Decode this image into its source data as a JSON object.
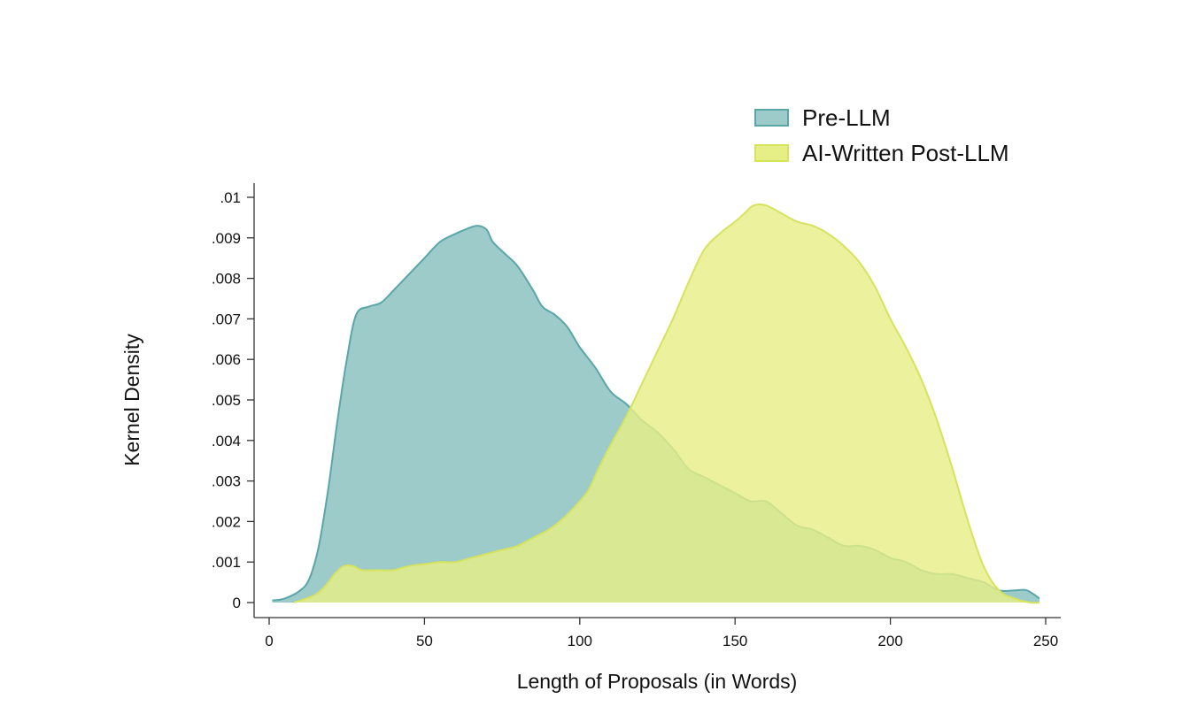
{
  "chart_data": {
    "type": "area",
    "xlabel": "Length of Proposals (in Words)",
    "ylabel": "Kernel Density",
    "xlim": [
      0,
      250
    ],
    "ylim": [
      0,
      0.01
    ],
    "x_ticks": [
      0,
      50,
      100,
      150,
      200,
      250
    ],
    "x_tick_labels": [
      "0",
      "50",
      "100",
      "150",
      "200",
      "250"
    ],
    "y_ticks": [
      0,
      0.001,
      0.002,
      0.003,
      0.004,
      0.005,
      0.006,
      0.007,
      0.008,
      0.009,
      0.01
    ],
    "y_tick_labels": [
      "0",
      ".001",
      ".002",
      ".003",
      ".004",
      ".005",
      ".006",
      ".007",
      ".008",
      ".009",
      ".01"
    ],
    "grid": false,
    "legend_position": "top-right",
    "series": [
      {
        "name": "Pre-LLM",
        "fill": "#9ccbc9",
        "stroke": "#5aa6a8",
        "points": [
          [
            1,
            5e-05
          ],
          [
            5,
            0.0001
          ],
          [
            10,
            0.0003
          ],
          [
            13,
            0.0006
          ],
          [
            16,
            0.0014
          ],
          [
            19,
            0.0028
          ],
          [
            22,
            0.0045
          ],
          [
            25,
            0.006
          ],
          [
            28,
            0.0071
          ],
          [
            32,
            0.0073
          ],
          [
            36,
            0.0074
          ],
          [
            40,
            0.0077
          ],
          [
            45,
            0.0081
          ],
          [
            50,
            0.0085
          ],
          [
            55,
            0.0089
          ],
          [
            60,
            0.0091
          ],
          [
            63,
            0.0092
          ],
          [
            67,
            0.0093
          ],
          [
            70,
            0.0092
          ],
          [
            72,
            0.0089
          ],
          [
            76,
            0.0086
          ],
          [
            80,
            0.0083
          ],
          [
            85,
            0.0077
          ],
          [
            88,
            0.0073
          ],
          [
            92,
            0.0071
          ],
          [
            96,
            0.0068
          ],
          [
            100,
            0.0063
          ],
          [
            105,
            0.0058
          ],
          [
            110,
            0.0052
          ],
          [
            115,
            0.0049
          ],
          [
            120,
            0.0045
          ],
          [
            125,
            0.0042
          ],
          [
            130,
            0.0038
          ],
          [
            135,
            0.0033
          ],
          [
            140,
            0.0031
          ],
          [
            145,
            0.0029
          ],
          [
            150,
            0.0027
          ],
          [
            155,
            0.0025
          ],
          [
            160,
            0.0025
          ],
          [
            165,
            0.0022
          ],
          [
            170,
            0.0019
          ],
          [
            175,
            0.0018
          ],
          [
            180,
            0.0016
          ],
          [
            185,
            0.0014
          ],
          [
            190,
            0.0014
          ],
          [
            195,
            0.0013
          ],
          [
            200,
            0.0011
          ],
          [
            205,
            0.001
          ],
          [
            210,
            0.0008
          ],
          [
            215,
            0.0007
          ],
          [
            220,
            0.0007
          ],
          [
            225,
            0.0006
          ],
          [
            230,
            0.0005
          ],
          [
            235,
            0.0003
          ],
          [
            240,
            0.0003
          ],
          [
            244,
            0.0003
          ],
          [
            248,
            0.0001
          ]
        ]
      },
      {
        "name": "AI-Written Post-LLM",
        "fill": "#e6ee86",
        "stroke": "#d6e35c",
        "points": [
          [
            8,
            0.0
          ],
          [
            12,
            0.0001
          ],
          [
            15,
            0.0002
          ],
          [
            18,
            0.0004
          ],
          [
            21,
            0.0007
          ],
          [
            24,
            0.0009
          ],
          [
            27,
            0.0009
          ],
          [
            30,
            0.0008
          ],
          [
            35,
            0.0008
          ],
          [
            40,
            0.0008
          ],
          [
            45,
            0.0009
          ],
          [
            50,
            0.00095
          ],
          [
            55,
            0.001
          ],
          [
            60,
            0.001
          ],
          [
            65,
            0.0011
          ],
          [
            70,
            0.0012
          ],
          [
            75,
            0.0013
          ],
          [
            80,
            0.0014
          ],
          [
            85,
            0.0016
          ],
          [
            90,
            0.0018
          ],
          [
            95,
            0.0021
          ],
          [
            100,
            0.0025
          ],
          [
            103,
            0.0028
          ],
          [
            106,
            0.0033
          ],
          [
            110,
            0.0039
          ],
          [
            115,
            0.0046
          ],
          [
            120,
            0.0054
          ],
          [
            125,
            0.0062
          ],
          [
            130,
            0.007
          ],
          [
            135,
            0.0079
          ],
          [
            140,
            0.0087
          ],
          [
            145,
            0.0091
          ],
          [
            150,
            0.0094
          ],
          [
            153,
            0.0096
          ],
          [
            156,
            0.0098
          ],
          [
            160,
            0.0098
          ],
          [
            165,
            0.0096
          ],
          [
            170,
            0.0094
          ],
          [
            175,
            0.0093
          ],
          [
            180,
            0.0091
          ],
          [
            185,
            0.0088
          ],
          [
            190,
            0.0084
          ],
          [
            195,
            0.0078
          ],
          [
            200,
            0.007
          ],
          [
            205,
            0.0063
          ],
          [
            210,
            0.0055
          ],
          [
            215,
            0.0045
          ],
          [
            220,
            0.0033
          ],
          [
            225,
            0.002
          ],
          [
            230,
            0.0009
          ],
          [
            235,
            0.0003
          ],
          [
            240,
            0.0001
          ],
          [
            245,
            0.0
          ],
          [
            248,
            0.0
          ]
        ]
      }
    ]
  }
}
